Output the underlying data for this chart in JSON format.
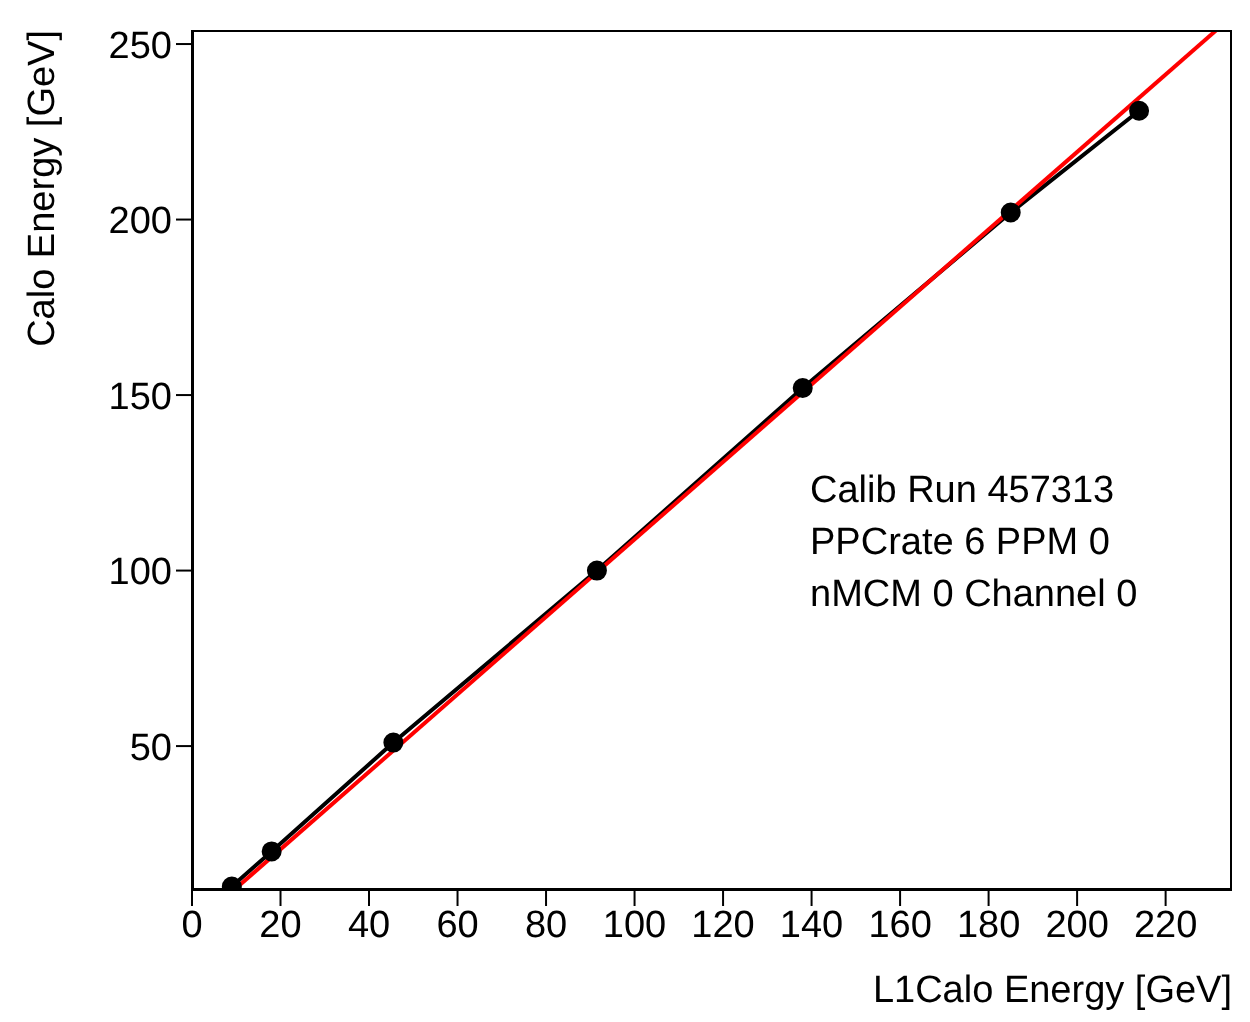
{
  "chart_data": {
    "type": "line",
    "xlabel": "L1Calo Energy [GeV]",
    "ylabel": "Calo Energy [GeV]",
    "xlim": [
      0,
      235
    ],
    "ylim": [
      9,
      254
    ],
    "xticks": [
      0,
      20,
      40,
      60,
      80,
      100,
      120,
      140,
      160,
      180,
      200,
      220
    ],
    "yticks": [
      50,
      100,
      150,
      200,
      250
    ],
    "grid": false,
    "series": [
      {
        "color": "#000000",
        "marker": "circle",
        "x": [
          9,
          18,
          45.5,
          91.5,
          138,
          185,
          214
        ],
        "values": [
          10,
          20,
          51,
          100,
          152,
          202,
          231
        ]
      },
      {
        "color": "#ff0000",
        "marker": "none",
        "x": [
          9.5,
          231.5
        ],
        "values": [
          9,
          254
        ]
      }
    ],
    "annotations": [
      "Calib Run 457313",
      "PPCrate 6 PPM 0",
      "nMCM 0 Channel 0"
    ]
  }
}
